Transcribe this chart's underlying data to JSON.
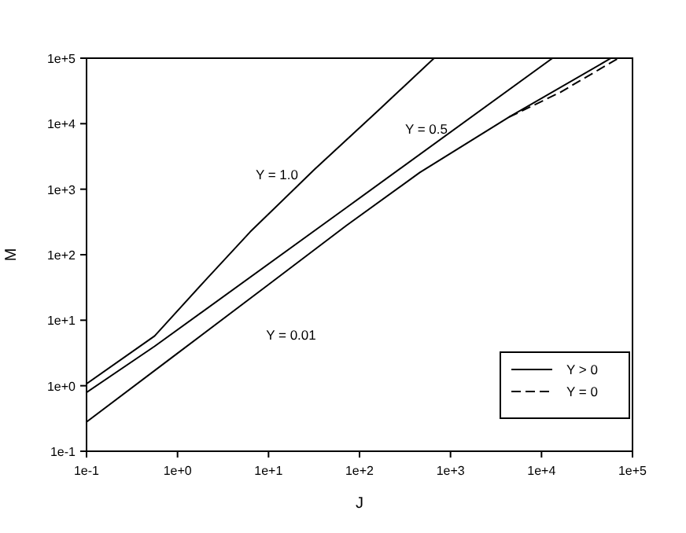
{
  "chart_data": {
    "type": "line",
    "xlabel": "J",
    "ylabel": "M",
    "log": "xy",
    "grid": false,
    "legend": "bottom right",
    "line_style": "solid",
    "xlim": [
      0.1,
      100000
    ],
    "ylim": [
      0.1,
      100000
    ],
    "xticks": [
      {
        "value": 0.1,
        "label": "1e-1"
      },
      {
        "value": 1,
        "label": "1e+0"
      },
      {
        "value": 10,
        "label": "1e+1"
      },
      {
        "value": 100,
        "label": "1e+2"
      },
      {
        "value": 1000,
        "label": "1e+3"
      },
      {
        "value": 10000,
        "label": "1e+4"
      },
      {
        "value": 100000,
        "label": "1e+5"
      }
    ],
    "yticks": [
      {
        "value": 0.1,
        "label": "1e-1"
      },
      {
        "value": 1,
        "label": "1e+0"
      },
      {
        "value": 10,
        "label": "1e+1"
      },
      {
        "value": 100,
        "label": "1e+2"
      },
      {
        "value": 1000,
        "label": "1e+3"
      },
      {
        "value": 10000,
        "label": "1e+4"
      },
      {
        "value": 100000,
        "label": "1e+5"
      }
    ],
    "annotations": [
      "Y > 0"
    ],
    "series": [
      {
        "name": "Y = 1.0",
        "color": "#000000",
        "x": [
          0.1,
          0.56,
          2,
          6.3,
          32,
          160,
          660
        ],
        "values": [
          1.07,
          5.75,
          40,
          224,
          2000,
          15800,
          100000
        ]
      },
      {
        "name": "Y = 0.5",
        "color": "#000000",
        "x": [
          0.1,
          0.56,
          72,
          13200
        ],
        "values": [
          0.79,
          4,
          525,
          100000
        ]
      },
      {
        "name": "Y = 0.01",
        "color": "#000000",
        "x": [
          0.1,
          0.9,
          10,
          72,
          460,
          4400,
          58000
        ],
        "values": [
          0.28,
          2.8,
          35,
          280,
          1800,
          12600,
          100000
        ]
      },
      {
        "name": "Y = 0",
        "color": "#000000",
        "line_style": "dashed",
        "x": [
          4400,
          16000,
          70000
        ],
        "values": [
          12600,
          30000,
          100000
        ]
      }
    ]
  }
}
